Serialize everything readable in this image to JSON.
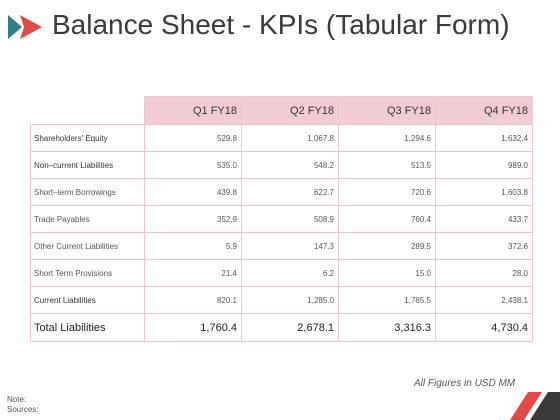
{
  "title": "Balance Sheet - KPIs (Tabular Form)",
  "colors": {
    "accent_red": "#e24b45",
    "accent_teal": "#2f7f84",
    "header_fill": "#f3ccd3",
    "grid": "#ecc5cc"
  },
  "icons": {
    "title": "double-arrow-icon",
    "corner": "corner-stripe-icon"
  },
  "table": {
    "columns": [
      "Q1 FY18",
      "Q2 FY18",
      "Q3 FY18",
      "Q4 FY18"
    ],
    "rows": [
      {
        "label": "Shareholders' Equity",
        "values": [
          "529.8",
          "1,067.8",
          "1,294.6",
          "1,632.4"
        ]
      },
      {
        "label": "Non–current Liabilities",
        "values": [
          "535.0",
          "548.2",
          "513.5",
          "989.0"
        ]
      },
      {
        "label": "Short–term Borrowings",
        "values": [
          "439.8",
          "622.7",
          "720.6",
          "1,603.8"
        ]
      },
      {
        "label": "Trade Payables",
        "values": [
          "352.9",
          "508.9",
          "760.4",
          "433.7"
        ]
      },
      {
        "label": "Other Current Liabilities",
        "values": [
          "5.9",
          "147.3",
          "289.5",
          "372.6"
        ]
      },
      {
        "label": "Short Term Provisions",
        "values": [
          "21.4",
          "6.2",
          "15.0",
          "28.0"
        ]
      },
      {
        "label": "Current Liabilities",
        "values": [
          "820.1",
          "1,285.0",
          "1,785.5",
          "2,438.1"
        ]
      }
    ],
    "total": {
      "label": "Total Liabilities",
      "values": [
        "1,760.4",
        "2,678.1",
        "3,316.3",
        "4,730.4"
      ]
    }
  },
  "footnote": "All Figures in USD MM",
  "note_label": "Note:",
  "sources_label": "Sources:"
}
